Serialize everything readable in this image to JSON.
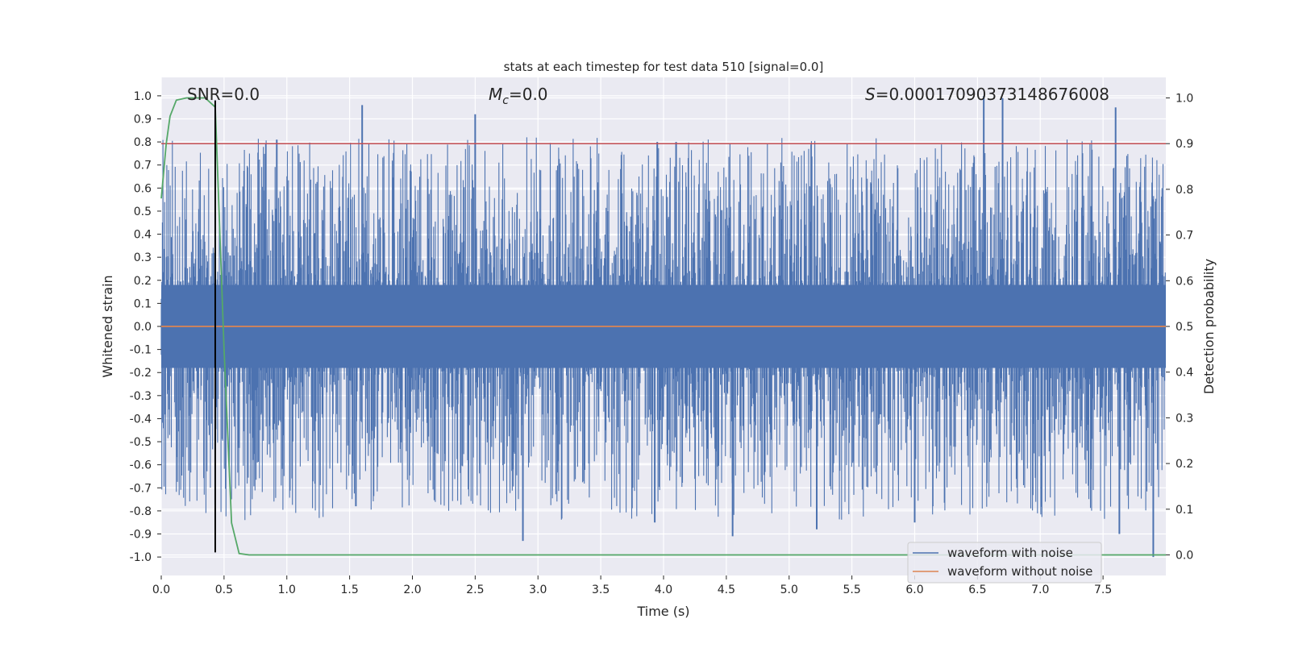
{
  "chart_data": {
    "type": "line",
    "title": "stats at each timestep for test data 510 [signal=0.0]",
    "xlabel": "Time (s)",
    "ylabel": "Whitened strain",
    "y2label": "Detection probability",
    "xlim": [
      0.0,
      8.0
    ],
    "ylim": [
      -1.08,
      1.08
    ],
    "y2lim": [
      -0.045,
      1.045
    ],
    "x_ticks": [
      0.0,
      0.5,
      1.0,
      1.5,
      2.0,
      2.5,
      3.0,
      3.5,
      4.0,
      4.5,
      5.0,
      5.5,
      6.0,
      6.5,
      7.0,
      7.5
    ],
    "x_tick_labels": [
      "0.0",
      "0.5",
      "1.0",
      "1.5",
      "2.0",
      "2.5",
      "3.0",
      "3.5",
      "4.0",
      "4.5",
      "5.0",
      "5.5",
      "6.0",
      "6.5",
      "7.0",
      "7.5"
    ],
    "y_ticks": [
      1.0,
      0.9,
      0.8,
      0.7,
      0.6,
      0.5,
      0.4,
      0.3,
      0.2,
      0.1,
      0.0,
      -0.1,
      -0.2,
      -0.3,
      -0.4,
      -0.5,
      -0.6,
      -0.7,
      -0.8,
      -0.9,
      -1.0
    ],
    "y_tick_labels": [
      "1.0",
      "0.9",
      "0.8",
      "0.7",
      "0.6",
      "0.5",
      "0.4",
      "0.3",
      "0.2",
      "0.1",
      "0.0",
      "-0.1",
      "-0.2",
      "-0.3",
      "-0.4",
      "-0.5",
      "-0.6",
      "-0.7",
      "-0.8",
      "-0.9",
      "-1.0"
    ],
    "y2_ticks": [
      1.0,
      0.9,
      0.8,
      0.7,
      0.6,
      0.5,
      0.4,
      0.3,
      0.2,
      0.1,
      0.0
    ],
    "y2_tick_labels": [
      "1.0",
      "0.9",
      "0.8",
      "0.7",
      "0.6",
      "0.5",
      "0.4",
      "0.3",
      "0.2",
      "0.1",
      "0.0"
    ],
    "grid": true,
    "legend_position": "lower-right",
    "annotations": {
      "snr": "SNR=0.0",
      "mc_symbol": "M",
      "mc_sub": "c",
      "mc_value": "=0.0",
      "s_symbol": "S",
      "s_value": "=0.00017090373148676008"
    },
    "threshold": {
      "y2": 0.9,
      "color": "#c44e52"
    },
    "marker_line": {
      "x": 0.43,
      "color": "#000000"
    },
    "noise_envelope": {
      "upper": 0.45,
      "lower": -0.42,
      "tall_spikes": [
        {
          "x": 0.43,
          "y": 0.98
        },
        {
          "x": 0.92,
          "y": 0.81
        },
        {
          "x": 1.6,
          "y": 0.96
        },
        {
          "x": 2.5,
          "y": 0.92
        },
        {
          "x": 3.95,
          "y": 0.8
        },
        {
          "x": 4.1,
          "y": 0.8
        },
        {
          "x": 6.55,
          "y": 1.0
        },
        {
          "x": 6.7,
          "y": 0.99
        },
        {
          "x": 7.6,
          "y": 0.95
        },
        {
          "x": 2.88,
          "y": -0.93
        },
        {
          "x": 4.55,
          "y": -0.91
        },
        {
          "x": 7.9,
          "y": -1.0
        },
        {
          "x": 3.93,
          "y": -0.85
        },
        {
          "x": 6.0,
          "y": -0.85
        },
        {
          "x": 7.63,
          "y": -0.9
        },
        {
          "x": 5.22,
          "y": -0.88
        },
        {
          "x": 1.55,
          "y": -0.78
        }
      ]
    },
    "series": [
      {
        "name": "waveform with noise",
        "axis": "left",
        "color": "#4c72b0",
        "kind": "noise"
      },
      {
        "name": "waveform without noise",
        "axis": "left",
        "color": "#dd8452",
        "x": [
          0.0,
          8.0
        ],
        "y": [
          0.0,
          0.0
        ]
      },
      {
        "name": "",
        "axis": "right",
        "color": "#55a868",
        "x": [
          0.0,
          0.04,
          0.07,
          0.12,
          0.2,
          0.28,
          0.35,
          0.43,
          0.5,
          0.56,
          0.62,
          0.7,
          1.0,
          8.0
        ],
        "y": [
          0.78,
          0.9,
          0.96,
          0.995,
          1.0,
          1.0,
          1.0,
          0.98,
          0.45,
          0.07,
          0.003,
          0.0,
          0.0,
          0.0
        ]
      }
    ],
    "legend": [
      "waveform with noise",
      "waveform without noise"
    ]
  }
}
